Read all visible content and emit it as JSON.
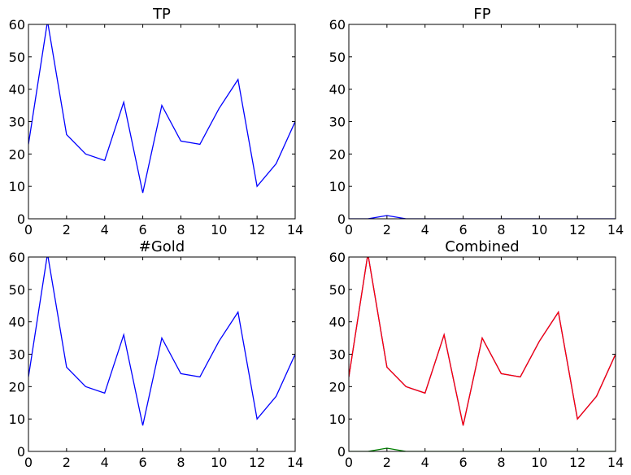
{
  "chart_data": [
    {
      "type": "line",
      "title": "TP",
      "xlim": [
        0,
        14
      ],
      "ylim": [
        0,
        60
      ],
      "x_ticks": [
        "0",
        "2",
        "4",
        "6",
        "8",
        "10",
        "12",
        "14"
      ],
      "y_ticks": [
        "0",
        "10",
        "20",
        "30",
        "40",
        "50",
        "60"
      ],
      "grid": false,
      "series": [
        {
          "color": "#0000ff",
          "x": [
            0,
            1,
            2,
            3,
            4,
            5,
            6,
            7,
            8,
            9,
            10,
            11,
            12,
            13,
            14
          ],
          "y": [
            23,
            61,
            26,
            20,
            18,
            36,
            8,
            35,
            24,
            23,
            34,
            43,
            10,
            17,
            30
          ]
        }
      ]
    },
    {
      "type": "line",
      "title": "FP",
      "xlim": [
        0,
        14
      ],
      "ylim": [
        0,
        60
      ],
      "x_ticks": [
        "0",
        "2",
        "4",
        "6",
        "8",
        "10",
        "12",
        "14"
      ],
      "y_ticks": [
        "0",
        "10",
        "20",
        "30",
        "40",
        "50",
        "60"
      ],
      "grid": false,
      "series": [
        {
          "color": "#0000ff",
          "x": [
            0,
            1,
            2,
            3,
            4,
            5,
            6,
            7,
            8,
            9,
            10,
            11,
            12,
            13,
            14
          ],
          "y": [
            0,
            0,
            1,
            0,
            0,
            0,
            0,
            0,
            0,
            0,
            0,
            0,
            0,
            0,
            0
          ]
        }
      ]
    },
    {
      "type": "line",
      "title": "#Gold",
      "xlim": [
        0,
        14
      ],
      "ylim": [
        0,
        60
      ],
      "x_ticks": [
        "0",
        "2",
        "4",
        "6",
        "8",
        "10",
        "12",
        "14"
      ],
      "y_ticks": [
        "0",
        "10",
        "20",
        "30",
        "40",
        "50",
        "60"
      ],
      "grid": false,
      "series": [
        {
          "color": "#0000ff",
          "x": [
            0,
            1,
            2,
            3,
            4,
            5,
            6,
            7,
            8,
            9,
            10,
            11,
            12,
            13,
            14
          ],
          "y": [
            23,
            61,
            26,
            20,
            18,
            36,
            8,
            35,
            24,
            23,
            34,
            43,
            10,
            17,
            30
          ]
        }
      ]
    },
    {
      "type": "line",
      "title": "Combined",
      "xlim": [
        0,
        14
      ],
      "ylim": [
        0,
        60
      ],
      "x_ticks": [
        "0",
        "2",
        "4",
        "6",
        "8",
        "10",
        "12",
        "14"
      ],
      "y_ticks": [
        "0",
        "10",
        "20",
        "30",
        "40",
        "50",
        "60"
      ],
      "grid": false,
      "series": [
        {
          "color": "#0000ff",
          "x": [
            0,
            1,
            2,
            3,
            4,
            5,
            6,
            7,
            8,
            9,
            10,
            11,
            12,
            13,
            14
          ],
          "y": [
            23,
            61,
            26,
            20,
            18,
            36,
            8,
            35,
            24,
            23,
            34,
            43,
            10,
            17,
            30
          ]
        },
        {
          "color": "#008000",
          "x": [
            0,
            1,
            2,
            3,
            4,
            5,
            6,
            7,
            8,
            9,
            10,
            11,
            12,
            13,
            14
          ],
          "y": [
            0,
            0,
            1,
            0,
            0,
            0,
            0,
            0,
            0,
            0,
            0,
            0,
            0,
            0,
            0
          ]
        },
        {
          "color": "#ff0000",
          "x": [
            0,
            1,
            2,
            3,
            4,
            5,
            6,
            7,
            8,
            9,
            10,
            11,
            12,
            13,
            14
          ],
          "y": [
            23,
            61,
            26,
            20,
            18,
            36,
            8,
            35,
            24,
            23,
            34,
            43,
            10,
            17,
            30
          ]
        }
      ]
    }
  ]
}
